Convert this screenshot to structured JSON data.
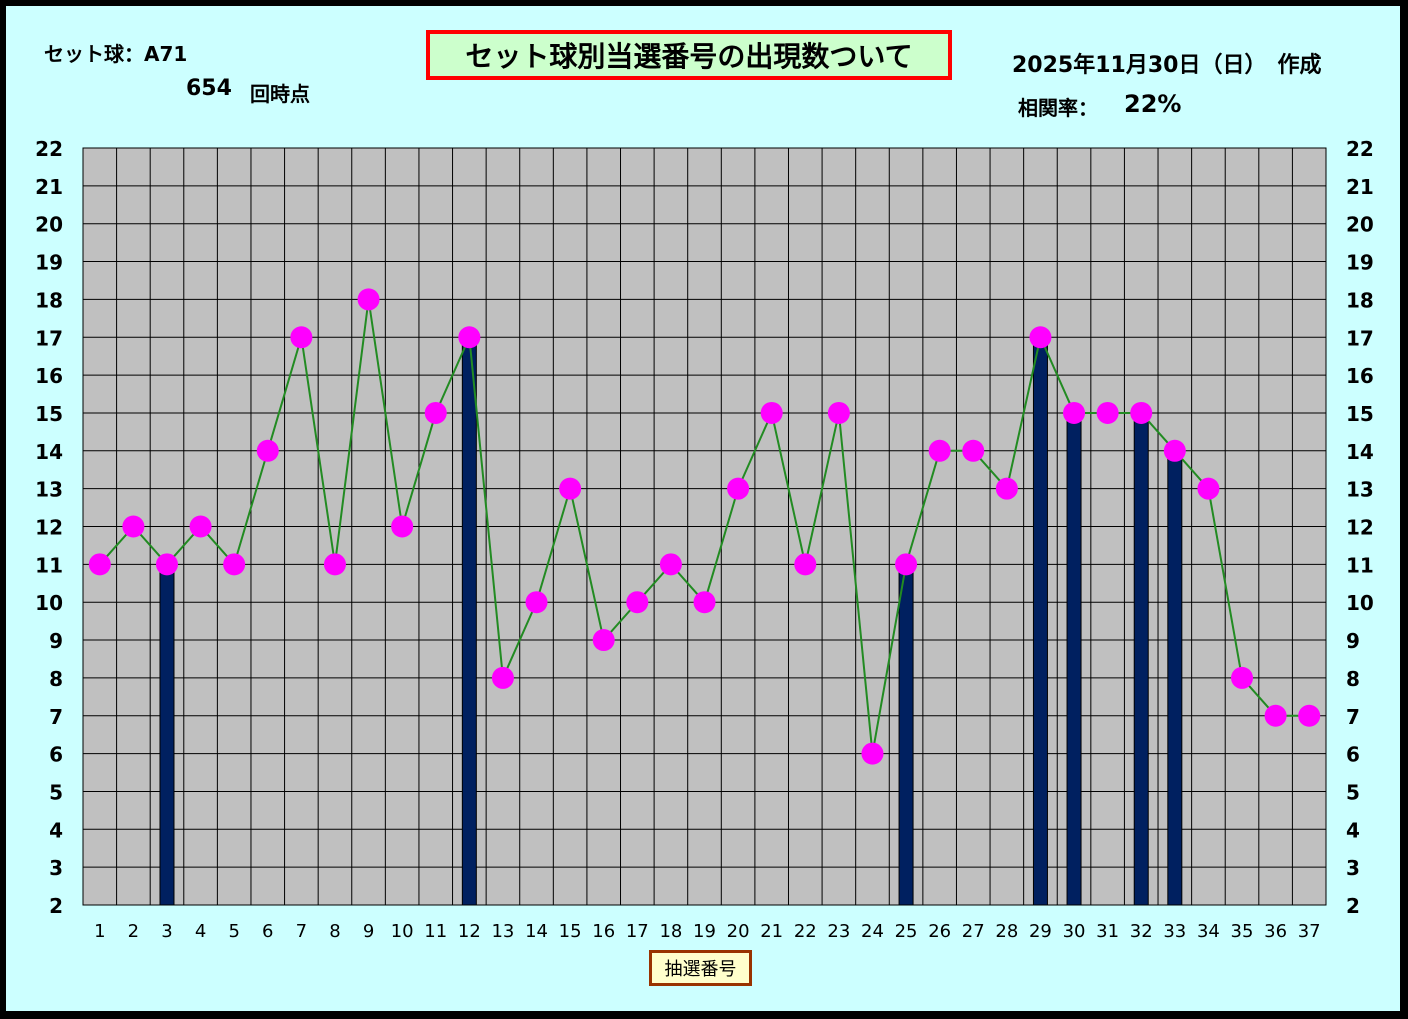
{
  "header": {
    "set_ball": "セット球：A71",
    "draw_count": "654",
    "draw_suffix": "回時点",
    "date": "2025年11月30日（日）　作成",
    "correlation_label": "相関率：",
    "correlation_value": "22%"
  },
  "colors": {
    "background": "#ccffff",
    "plot_area": "#c0c0c0",
    "bar": "#002060",
    "line": "#228b22",
    "marker": "#ff00ff",
    "title_border": "#ff0000",
    "title_fill": "#ccffcc"
  },
  "chart_data": {
    "type": "line",
    "title": "セット球別当選番号の出現数ついて",
    "xlabel": "抽選番号",
    "ylabel": "",
    "ylim": [
      2,
      22
    ],
    "y_ticks": [
      2,
      3,
      4,
      5,
      6,
      7,
      8,
      9,
      10,
      11,
      12,
      13,
      14,
      15,
      16,
      17,
      18,
      19,
      20,
      21,
      22
    ],
    "grid": true,
    "y_axis_both_sides": true,
    "x": [
      1,
      2,
      3,
      4,
      5,
      6,
      7,
      8,
      9,
      10,
      11,
      12,
      13,
      14,
      15,
      16,
      17,
      18,
      19,
      20,
      21,
      22,
      23,
      24,
      25,
      26,
      27,
      28,
      29,
      30,
      31,
      32,
      33,
      34,
      35,
      36,
      37
    ],
    "series": [
      {
        "type": "line",
        "values": [
          11,
          12,
          11,
          12,
          11,
          14,
          17,
          11,
          18,
          12,
          15,
          17,
          8,
          10,
          13,
          9,
          10,
          11,
          10,
          13,
          15,
          11,
          15,
          6,
          11,
          14,
          14,
          13,
          17,
          15,
          15,
          15,
          14,
          13,
          8,
          7,
          7
        ]
      },
      {
        "type": "bar",
        "points": [
          {
            "x": 3,
            "value": 11
          },
          {
            "x": 12,
            "value": 17
          },
          {
            "x": 25,
            "value": 11
          },
          {
            "x": 29,
            "value": 17
          },
          {
            "x": 30,
            "value": 15
          },
          {
            "x": 32,
            "value": 15
          },
          {
            "x": 33,
            "value": 14
          }
        ]
      }
    ]
  }
}
